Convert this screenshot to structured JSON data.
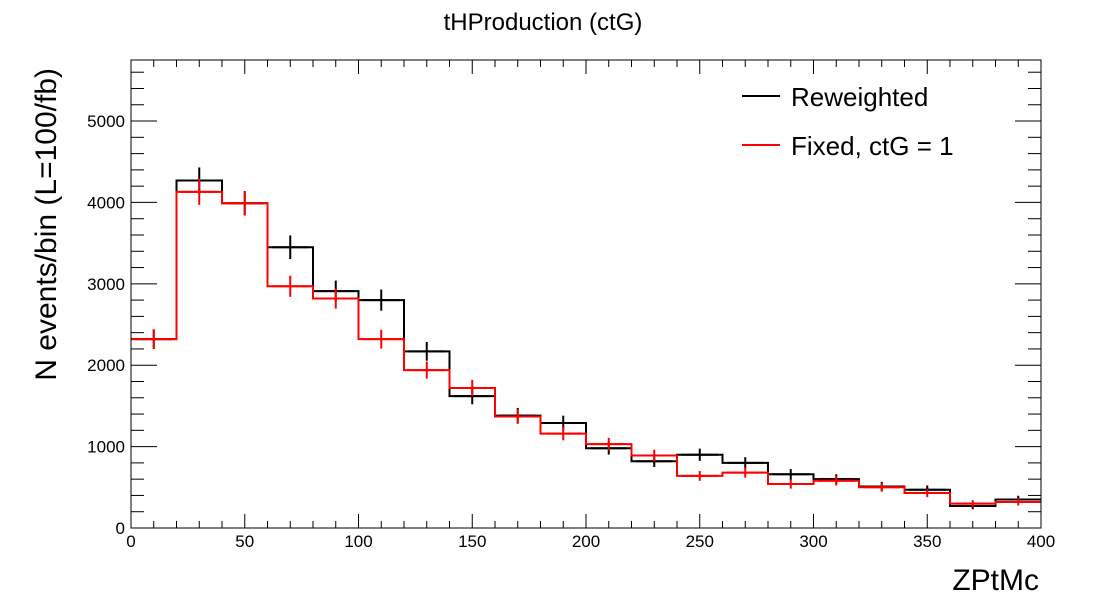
{
  "chart_data": {
    "type": "histogram",
    "title": "tHProduction (ctG)",
    "xlabel": "ZPtMc",
    "ylabel": "N events/bin (L=100/fb)",
    "xlim": [
      0,
      400
    ],
    "ylim": [
      0,
      5750
    ],
    "bin_width": 20,
    "x_ticks": [
      0,
      50,
      100,
      150,
      200,
      250,
      300,
      350,
      400
    ],
    "y_ticks": [
      0,
      1000,
      2000,
      3000,
      4000,
      5000
    ],
    "grid": false,
    "legend_position": "top-right",
    "series": [
      {
        "name": "Reweighted",
        "color": "#000000",
        "bin_centers": [
          10,
          30,
          50,
          70,
          90,
          110,
          130,
          150,
          170,
          190,
          210,
          230,
          250,
          270,
          290,
          310,
          330,
          350,
          370,
          390
        ],
        "values": [
          2320,
          4270,
          3990,
          3450,
          2910,
          2800,
          2170,
          1620,
          1380,
          1290,
          980,
          820,
          900,
          800,
          660,
          600,
          510,
          470,
          270,
          350
        ],
        "errors": [
          120,
          160,
          150,
          145,
          130,
          130,
          115,
          100,
          95,
          90,
          78,
          70,
          75,
          70,
          64,
          60,
          56,
          53,
          40,
          46
        ]
      },
      {
        "name": "Fixed, ctG = 1",
        "color": "#ff0000",
        "bin_centers": [
          10,
          30,
          50,
          70,
          90,
          110,
          130,
          150,
          170,
          190,
          210,
          230,
          250,
          270,
          290,
          310,
          330,
          350,
          370,
          390
        ],
        "values": [
          2320,
          4130,
          3990,
          2970,
          2820,
          2320,
          1940,
          1720,
          1370,
          1160,
          1030,
          890,
          640,
          680,
          540,
          580,
          500,
          430,
          300,
          320
        ],
        "errors": [
          120,
          160,
          150,
          130,
          125,
          115,
          105,
          100,
          90,
          82,
          78,
          72,
          60,
          62,
          56,
          58,
          54,
          50,
          42,
          44
        ]
      }
    ]
  }
}
